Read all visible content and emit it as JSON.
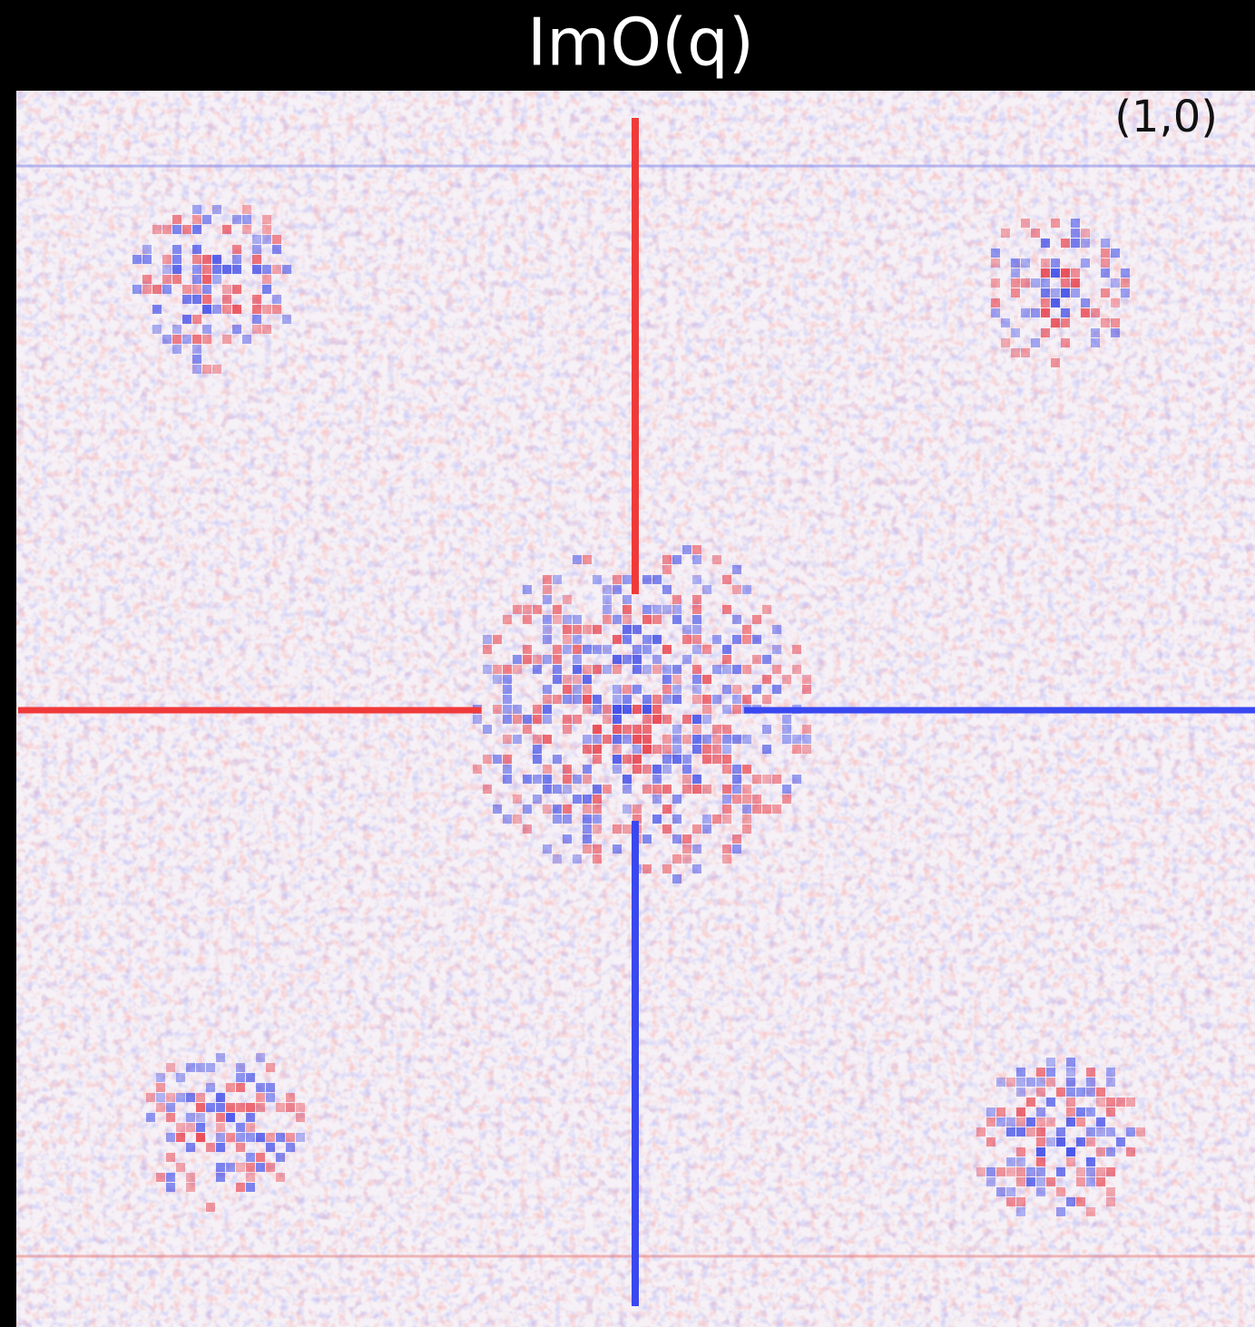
{
  "header": {
    "title": "ImO(q)"
  },
  "panel": {
    "label": "(1,0)"
  }
}
